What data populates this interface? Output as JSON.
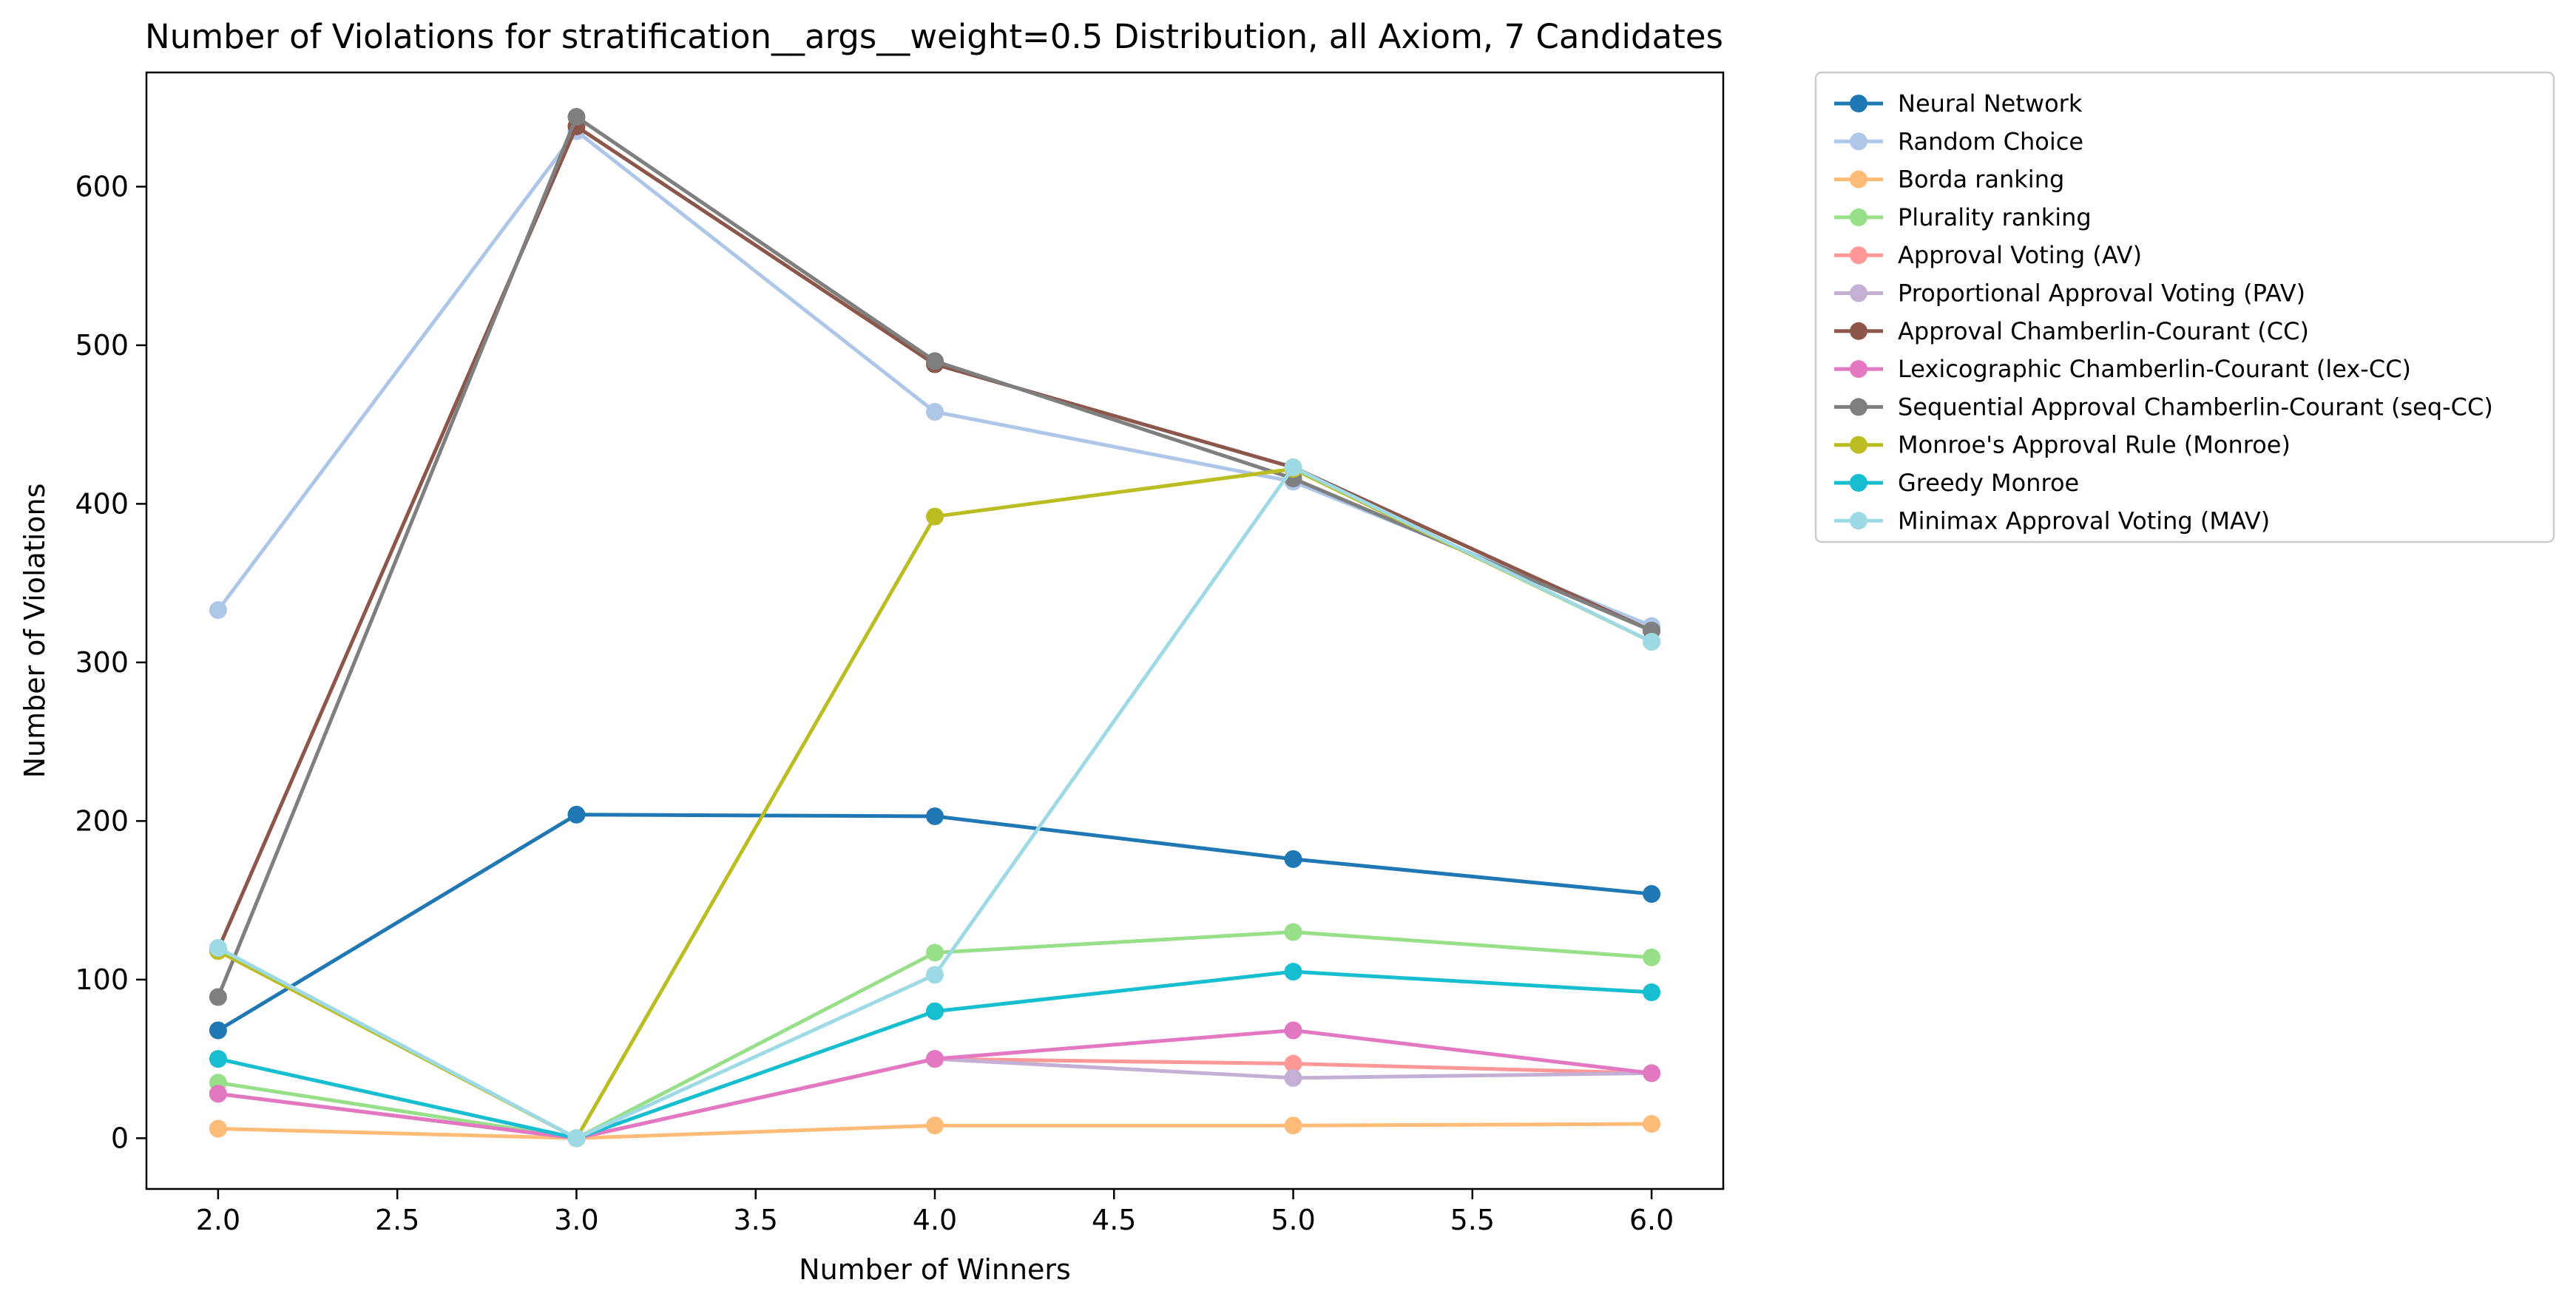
{
  "chart_data": {
    "type": "line",
    "title": "Number of Violations for stratification__args__weight=0.5 Distribution, all Axiom, 7 Candidates",
    "xlabel": "Number of Winners",
    "ylabel": "Number of Violations",
    "xlim": [
      1.8,
      6.2
    ],
    "ylim": [
      -32,
      672
    ],
    "xticks": [
      2.0,
      2.5,
      3.0,
      3.5,
      4.0,
      4.5,
      5.0,
      5.5,
      6.0
    ],
    "xtick_labels": [
      "2.0",
      "2.5",
      "3.0",
      "3.5",
      "4.0",
      "4.5",
      "5.0",
      "5.5",
      "6.0"
    ],
    "yticks": [
      0,
      100,
      200,
      300,
      400,
      500,
      600
    ],
    "ytick_labels": [
      "0",
      "100",
      "200",
      "300",
      "400",
      "500",
      "600"
    ],
    "grid": false,
    "legend_position": "outside-top-right",
    "x": [
      2,
      3,
      4,
      5,
      6
    ],
    "series": [
      {
        "name": "Neural Network",
        "color": "#1f77b4",
        "values": [
          68,
          204,
          203,
          176,
          154
        ]
      },
      {
        "name": "Random Choice",
        "color": "#aec7e8",
        "values": [
          333,
          635,
          458,
          414,
          323
        ]
      },
      {
        "name": "Borda ranking",
        "color": "#ffbb78",
        "values": [
          6,
          0,
          8,
          8,
          9
        ]
      },
      {
        "name": "Plurality ranking",
        "color": "#98df8a",
        "values": [
          35,
          0,
          117,
          130,
          114
        ]
      },
      {
        "name": "Approval Voting (AV)",
        "color": "#ff9896",
        "values": [
          28,
          0,
          50,
          47,
          41
        ]
      },
      {
        "name": "Proportional Approval Voting (PAV)",
        "color": "#c5b0d5",
        "values": [
          28,
          0,
          50,
          38,
          41
        ]
      },
      {
        "name": "Approval Chamberlin-Courant (CC)",
        "color": "#8c564b",
        "values": [
          119,
          638,
          488,
          423,
          320
        ]
      },
      {
        "name": "Lexicographic Chamberlin-Courant (lex-CC)",
        "color": "#e377c2",
        "values": [
          28,
          0,
          50,
          68,
          41
        ]
      },
      {
        "name": "Sequential Approval Chamberlin-Courant (seq-CC)",
        "color": "#7f7f7f",
        "values": [
          89,
          644,
          490,
          416,
          320
        ]
      },
      {
        "name": "Monroe's Approval Rule (Monroe)",
        "color": "#bcbd22",
        "values": [
          118,
          0,
          392,
          422,
          313
        ]
      },
      {
        "name": "Greedy Monroe",
        "color": "#17becf",
        "values": [
          50,
          0,
          80,
          105,
          92
        ]
      },
      {
        "name": "Minimax Approval Voting (MAV)",
        "color": "#9edae5",
        "values": [
          120,
          0,
          103,
          423,
          313
        ]
      }
    ]
  }
}
